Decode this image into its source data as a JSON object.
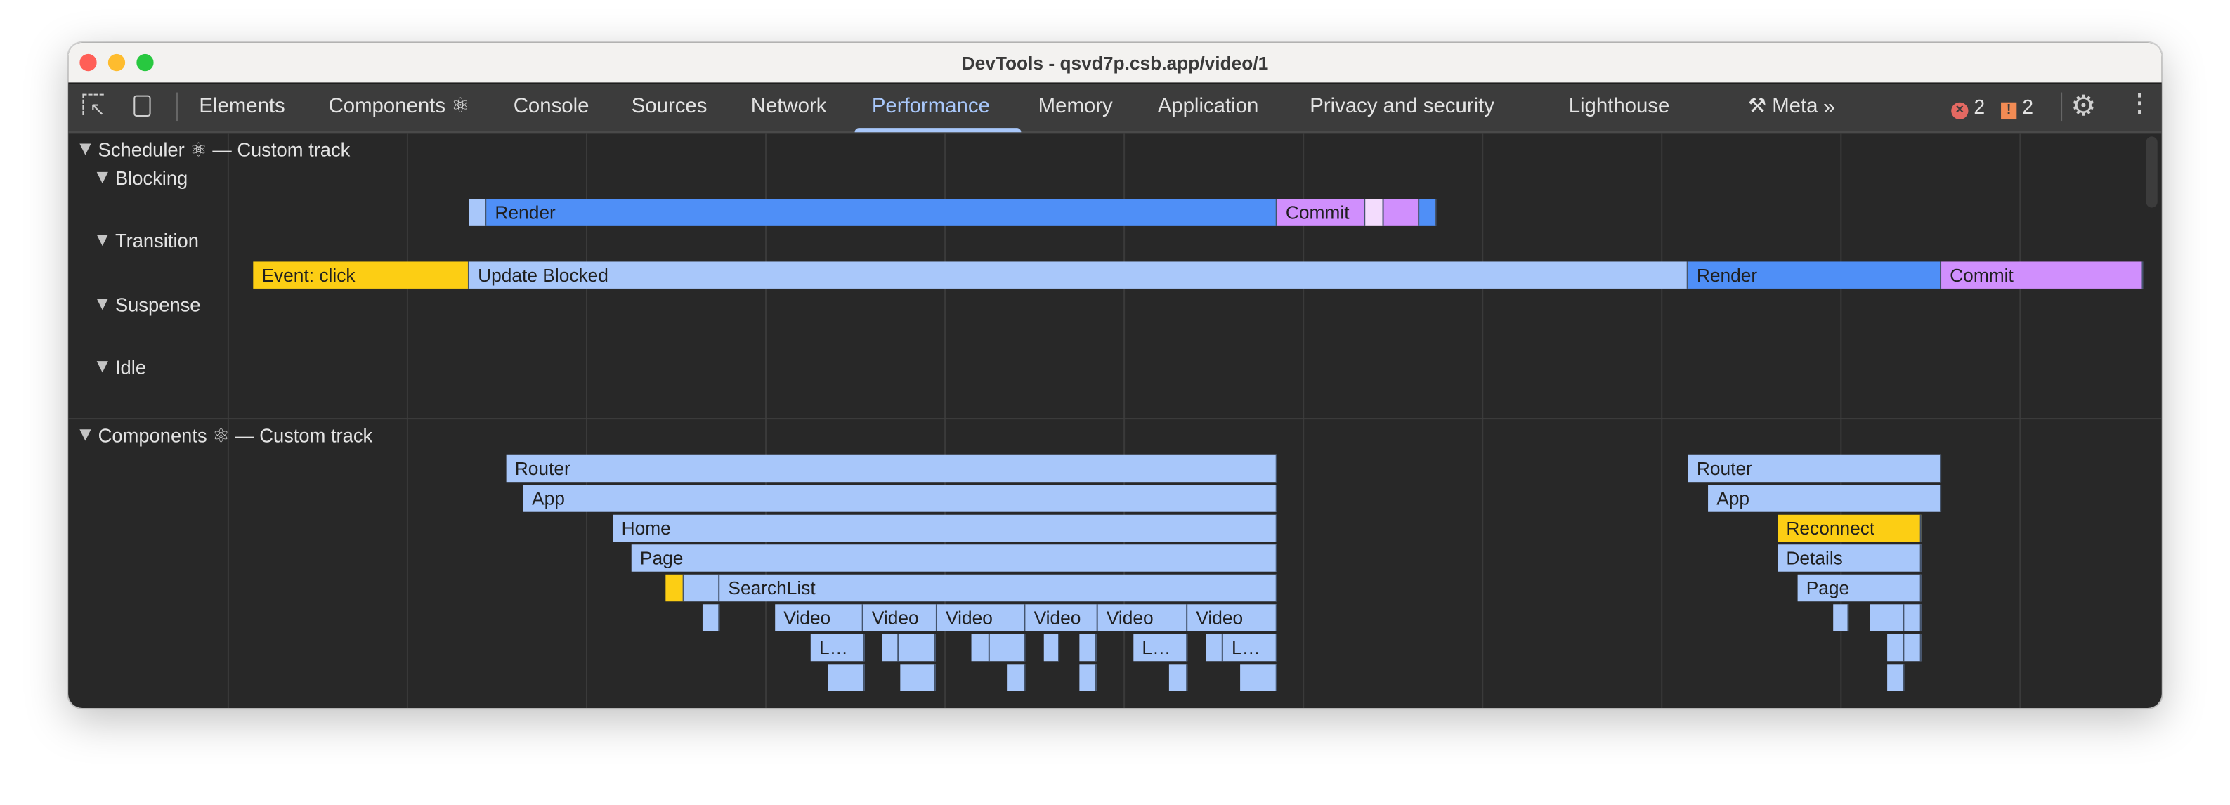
{
  "window": {
    "title": "DevTools - qsvd7p.csb.app/video/1"
  },
  "toolbar": {
    "tabs": [
      {
        "label": "Elements"
      },
      {
        "label": "Components ⚛"
      },
      {
        "label": "Console"
      },
      {
        "label": "Sources"
      },
      {
        "label": "Network"
      },
      {
        "label": "Performance",
        "active": true
      },
      {
        "label": "Memory"
      },
      {
        "label": "Application"
      },
      {
        "label": "Privacy and security"
      },
      {
        "label": "Lighthouse"
      },
      {
        "label": "Meta",
        "icon": "tools-icon"
      }
    ],
    "more": "»",
    "errors": "2",
    "warnings": "2"
  },
  "scheduler": {
    "title": "Scheduler ⚛ — Custom track",
    "lanes": [
      "Blocking",
      "Transition",
      "Suspense",
      "Idle"
    ],
    "bars": [
      "",
      "Render",
      "Commit",
      "",
      "",
      "",
      "Event: click",
      "Update Blocked",
      "Render",
      "Commit"
    ]
  },
  "components": {
    "title": "Components ⚛ — Custom track",
    "bars": [
      "Router",
      "App",
      "Home",
      "Page",
      "",
      "",
      "SearchList",
      "",
      "Video",
      "Video",
      "Video",
      "Video",
      "Video",
      "Video",
      "L…",
      "L…",
      "L…",
      "Router",
      "App",
      "Reconnect",
      "Details",
      "Page"
    ]
  },
  "colors": {
    "render": "#4f8ff7",
    "commit": "#d08ffd",
    "component": "#a8c7fa",
    "warning": "#fcce14",
    "accent": "#a8c7fa"
  }
}
